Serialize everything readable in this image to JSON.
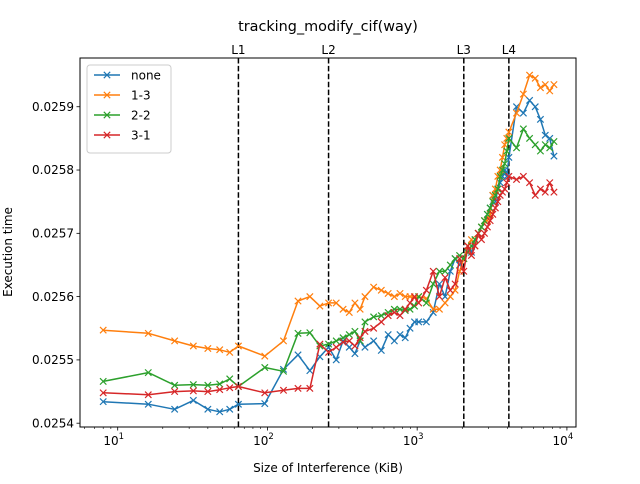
{
  "chart_data": {
    "type": "line",
    "title": "tracking_modify_cif(way)",
    "xlabel": "Size of Interference (KiB)",
    "ylabel": "Execution time",
    "x_scale": "log",
    "xlim": [
      5.6,
      11500
    ],
    "ylim": [
      0.025394,
      0.025977
    ],
    "x_ticks": [
      {
        "value": 10,
        "base": "10",
        "exp": "1"
      },
      {
        "value": 100,
        "base": "10",
        "exp": "2"
      },
      {
        "value": 1000,
        "base": "10",
        "exp": "3"
      },
      {
        "value": 10000,
        "base": "10",
        "exp": "4"
      }
    ],
    "y_ticks": [
      {
        "value": 0.0254,
        "label": "0.0254"
      },
      {
        "value": 0.0255,
        "label": "0.0255"
      },
      {
        "value": 0.0256,
        "label": "0.0256"
      },
      {
        "value": 0.0257,
        "label": "0.0257"
      },
      {
        "value": 0.0258,
        "label": "0.0258"
      },
      {
        "value": 0.0259,
        "label": "0.0259"
      }
    ],
    "vlines": [
      {
        "label": "L1",
        "x": 64
      },
      {
        "label": "L2",
        "x": 256
      },
      {
        "label": "L3",
        "x": 2048
      },
      {
        "label": "L4",
        "x": 4096
      }
    ],
    "legend_position": "upper-left",
    "series": [
      {
        "name": "none",
        "color": "#1f77b4",
        "x": [
          8,
          16,
          24,
          32,
          40,
          48,
          56,
          64,
          96,
          128,
          160,
          192,
          224,
          256,
          288,
          320,
          352,
          384,
          416,
          448,
          512,
          576,
          640,
          704,
          768,
          832,
          896,
          960,
          1024,
          1152,
          1280,
          1408,
          1536,
          1664,
          1792,
          1920,
          2048,
          2176,
          2304,
          2432,
          2560,
          2688,
          2816,
          2944,
          3072,
          3200,
          3328,
          3456,
          3584,
          3712,
          3840,
          3968,
          4096,
          4608,
          5120,
          5632,
          6144,
          6656,
          7168,
          7680,
          8192
        ],
        "y": [
          0.025434,
          0.02543,
          0.025422,
          0.025436,
          0.025422,
          0.025418,
          0.025422,
          0.02543,
          0.025431,
          0.025485,
          0.025508,
          0.025483,
          0.025505,
          0.02552,
          0.0255,
          0.02553,
          0.02552,
          0.02551,
          0.02553,
          0.02552,
          0.02553,
          0.025515,
          0.02554,
          0.02553,
          0.02554,
          0.025535,
          0.02555,
          0.02556,
          0.02556,
          0.02556,
          0.025575,
          0.02562,
          0.0256,
          0.02564,
          0.02566,
          0.02565,
          0.02566,
          0.02568,
          0.02567,
          0.02569,
          0.0257,
          0.02571,
          0.02572,
          0.02573,
          0.02574,
          0.02576,
          0.02575,
          0.02577,
          0.02578,
          0.02579,
          0.0258,
          0.02579,
          0.02582,
          0.0259,
          0.02589,
          0.02591,
          0.0259,
          0.02588,
          0.025855,
          0.02585,
          0.025822
        ]
      },
      {
        "name": "1-3",
        "color": "#ff7f0e",
        "x": [
          8,
          16,
          24,
          32,
          40,
          48,
          56,
          64,
          96,
          128,
          160,
          192,
          224,
          256,
          288,
          320,
          352,
          384,
          416,
          448,
          512,
          576,
          640,
          704,
          768,
          832,
          896,
          960,
          1024,
          1152,
          1280,
          1408,
          1536,
          1664,
          1792,
          1920,
          2048,
          2176,
          2304,
          2432,
          2560,
          2688,
          2816,
          2944,
          3072,
          3200,
          3328,
          3456,
          3584,
          3712,
          3840,
          3968,
          4096,
          4608,
          5120,
          5632,
          6144,
          6656,
          7168,
          7680,
          8192
        ],
        "y": [
          0.025547,
          0.025542,
          0.02553,
          0.025522,
          0.025518,
          0.025516,
          0.025512,
          0.025522,
          0.025506,
          0.02553,
          0.025593,
          0.0256,
          0.025585,
          0.02559,
          0.02559,
          0.02558,
          0.025575,
          0.02559,
          0.02558,
          0.0256,
          0.025615,
          0.02561,
          0.025605,
          0.0256,
          0.025605,
          0.0256,
          0.0256,
          0.025598,
          0.0256,
          0.025597,
          0.02558,
          0.02558,
          0.02559,
          0.0256,
          0.02561,
          0.02564,
          0.02566,
          0.02568,
          0.02569,
          0.02568,
          0.0257,
          0.02571,
          0.02572,
          0.02572,
          0.02573,
          0.02576,
          0.02577,
          0.02579,
          0.0258,
          0.02582,
          0.02584,
          0.02585,
          0.02586,
          0.02589,
          0.02592,
          0.02595,
          0.025945,
          0.02593,
          0.025935,
          0.025925,
          0.025935
        ]
      },
      {
        "name": "2-2",
        "color": "#2ca02c",
        "x": [
          8,
          16,
          24,
          32,
          40,
          48,
          56,
          64,
          96,
          128,
          160,
          192,
          224,
          256,
          288,
          320,
          352,
          384,
          416,
          448,
          512,
          576,
          640,
          704,
          768,
          832,
          896,
          960,
          1024,
          1152,
          1280,
          1408,
          1536,
          1664,
          1792,
          1920,
          2048,
          2176,
          2304,
          2432,
          2560,
          2688,
          2816,
          2944,
          3072,
          3200,
          3328,
          3456,
          3584,
          3712,
          3840,
          3968,
          4096,
          4608,
          5120,
          5632,
          6144,
          6656,
          7168,
          7680,
          8192
        ],
        "y": [
          0.025466,
          0.02548,
          0.02546,
          0.025461,
          0.02546,
          0.025462,
          0.02547,
          0.025458,
          0.025488,
          0.025482,
          0.025542,
          0.025543,
          0.025522,
          0.025525,
          0.02553,
          0.025535,
          0.02554,
          0.025545,
          0.02553,
          0.02556,
          0.025568,
          0.02557,
          0.025575,
          0.02558,
          0.02558,
          0.025578,
          0.02558,
          0.025585,
          0.0256,
          0.02559,
          0.02562,
          0.02564,
          0.02564,
          0.02565,
          0.02566,
          0.025665,
          0.02566,
          0.02567,
          0.02568,
          0.02569,
          0.0257,
          0.02571,
          0.02572,
          0.02573,
          0.02574,
          0.02575,
          0.02576,
          0.02577,
          0.02579,
          0.0258,
          0.02581,
          0.02583,
          0.02585,
          0.025835,
          0.025865,
          0.02585,
          0.02584,
          0.02583,
          0.02584,
          0.025835,
          0.025845
        ]
      },
      {
        "name": "3-1",
        "color": "#d62728",
        "x": [
          8,
          16,
          24,
          32,
          40,
          48,
          56,
          64,
          96,
          128,
          160,
          192,
          224,
          256,
          288,
          320,
          352,
          384,
          416,
          448,
          512,
          576,
          640,
          704,
          768,
          832,
          896,
          960,
          1024,
          1152,
          1280,
          1408,
          1536,
          1664,
          1792,
          1920,
          2048,
          2176,
          2304,
          2432,
          2560,
          2688,
          2816,
          2944,
          3072,
          3200,
          3328,
          3456,
          3584,
          3712,
          3840,
          3968,
          4096,
          4608,
          5120,
          5632,
          6144,
          6656,
          7168,
          7680,
          8192
        ],
        "y": [
          0.025448,
          0.025445,
          0.02545,
          0.025451,
          0.02545,
          0.025453,
          0.025456,
          0.025458,
          0.025448,
          0.025452,
          0.025455,
          0.025455,
          0.025525,
          0.025512,
          0.02552,
          0.025528,
          0.02553,
          0.025522,
          0.025535,
          0.025545,
          0.02555,
          0.02556,
          0.02557,
          0.025575,
          0.02557,
          0.02558,
          0.02559,
          0.0256,
          0.02559,
          0.02561,
          0.02564,
          0.0256,
          0.02563,
          0.02561,
          0.02562,
          0.02566,
          0.02564,
          0.02568,
          0.025665,
          0.02568,
          0.0257,
          0.02569,
          0.0257,
          0.02571,
          0.02572,
          0.02573,
          0.02574,
          0.02575,
          0.02576,
          0.025765,
          0.02577,
          0.02578,
          0.02579,
          0.025785,
          0.02579,
          0.02578,
          0.02576,
          0.02577,
          0.025765,
          0.02578,
          0.025765
        ]
      }
    ]
  }
}
